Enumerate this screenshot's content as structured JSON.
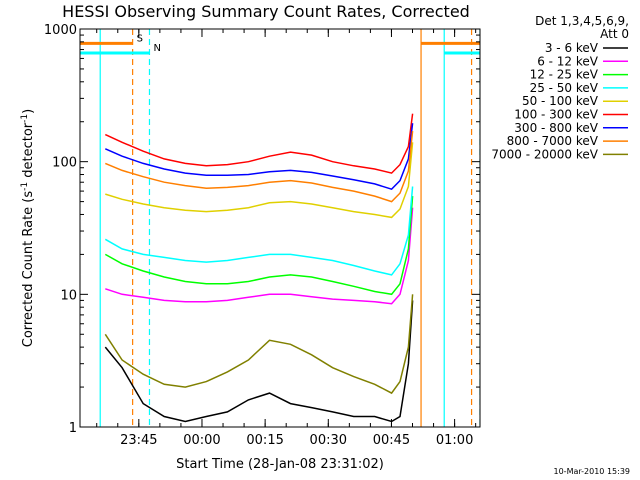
{
  "chart_data": {
    "type": "line",
    "title": "HESSI Observing Summary Count Rates, Corrected",
    "xlabel": "Start Time (28-Jan-08 23:31:02)",
    "ylabel": "Corrected Count Rate (s",
    "ylabel_sup1": "-1",
    "ylabel_mid": " detector",
    "ylabel_sup2": "-1",
    "ylabel_end": ")",
    "y_scale": "log",
    "ylim": [
      1,
      1000
    ],
    "xlim_minutes": [
      0,
      95
    ],
    "x_ticks": [
      {
        "minute": 13.97,
        "label": "23:45"
      },
      {
        "minute": 28.97,
        "label": "00:00"
      },
      {
        "minute": 43.97,
        "label": "00:15"
      },
      {
        "minute": 58.97,
        "label": "00:30"
      },
      {
        "minute": 73.97,
        "label": "00:45"
      },
      {
        "minute": 88.97,
        "label": "01:00"
      }
    ],
    "y_ticks": [
      {
        "value": 1,
        "label": "1"
      },
      {
        "value": 10,
        "label": "10"
      },
      {
        "value": 100,
        "label": "100"
      },
      {
        "value": 1000,
        "label": "1000"
      }
    ],
    "legend_header_1": "Det 1,3,4,5,6,9,",
    "legend_header_2": "Att 0",
    "legend_position": "right",
    "x": [
      6,
      10,
      15,
      20,
      25,
      30,
      35,
      40,
      45,
      50,
      55,
      60,
      65,
      70,
      74,
      76,
      78,
      79
    ],
    "series": [
      {
        "name": "3 - 6 keV",
        "color": "#000000",
        "values": [
          4,
          2.8,
          1.5,
          1.2,
          1.1,
          1.2,
          1.3,
          1.6,
          1.8,
          1.5,
          1.4,
          1.3,
          1.2,
          1.2,
          1.1,
          1.2,
          3,
          9
        ]
      },
      {
        "name": "6 - 12 keV",
        "color": "#ff00ff",
        "values": [
          11,
          10,
          9.5,
          9,
          8.8,
          8.8,
          9,
          9.5,
          10,
          10,
          9.6,
          9.2,
          9,
          8.8,
          8.5,
          10,
          18,
          45
        ]
      },
      {
        "name": "12 - 25 keV",
        "color": "#00ff00",
        "values": [
          20,
          17,
          15,
          13.5,
          12.5,
          12,
          12,
          12.5,
          13.5,
          14,
          13.5,
          12.5,
          11.5,
          10.5,
          10,
          12,
          22,
          55
        ]
      },
      {
        "name": "25 - 50 keV",
        "color": "#00ffff",
        "values": [
          26,
          22,
          20,
          19,
          18,
          17.5,
          18,
          19,
          20,
          20,
          19,
          18,
          16.5,
          15,
          14,
          17,
          28,
          65
        ]
      },
      {
        "name": "50 - 100 keV",
        "color": "#e0d000",
        "values": [
          57,
          52,
          48,
          45,
          43,
          42,
          43,
          45,
          49,
          50,
          48,
          45,
          42,
          40,
          38,
          44,
          65,
          140
        ]
      },
      {
        "name": "100 - 300 keV",
        "color": "#ff0000",
        "values": [
          160,
          140,
          120,
          105,
          97,
          93,
          95,
          100,
          110,
          118,
          112,
          100,
          93,
          88,
          82,
          95,
          130,
          230
        ]
      },
      {
        "name": "300 - 800 keV",
        "color": "#0000ff",
        "values": [
          125,
          110,
          97,
          88,
          82,
          79,
          79,
          80,
          84,
          86,
          83,
          78,
          73,
          68,
          62,
          72,
          105,
          195
        ]
      },
      {
        "name": "800 - 7000 keV",
        "color": "#ff7f00",
        "values": [
          97,
          86,
          77,
          70,
          66,
          63,
          64,
          66,
          70,
          72,
          69,
          64,
          60,
          55,
          50,
          58,
          85,
          170
        ]
      },
      {
        "name": "7000 - 20000 keV",
        "color": "#808000",
        "values": [
          5,
          3.2,
          2.5,
          2.1,
          2.0,
          2.2,
          2.6,
          3.2,
          4.5,
          4.2,
          3.5,
          2.8,
          2.4,
          2.1,
          1.8,
          2.2,
          4,
          10
        ]
      }
    ],
    "vlines": [
      {
        "minute": 4.8,
        "color": "#00ffff",
        "dash": false
      },
      {
        "minute": 12.5,
        "color": "#ff7f00",
        "dash": true
      },
      {
        "minute": 16.5,
        "color": "#00ffff",
        "dash": true
      },
      {
        "minute": 81,
        "color": "#ff7f00",
        "dash": false
      },
      {
        "minute": 86.5,
        "color": "#00ffff",
        "dash": false
      },
      {
        "minute": 93,
        "color": "#ff7f00",
        "dash": true
      },
      {
        "minute": 95,
        "color": "#00ffff",
        "dash": true
      }
    ],
    "flag_bars": [
      {
        "from": 0,
        "to": 12.5,
        "color": "#ff7f00",
        "value": 780,
        "label": "S"
      },
      {
        "from": 0,
        "to": 16.5,
        "color": "#00ffff",
        "value": 660,
        "label": "N"
      },
      {
        "from": 81,
        "to": 95,
        "color": "#ff7f00",
        "value": 780,
        "label": ""
      },
      {
        "from": 86.5,
        "to": 95,
        "color": "#00ffff",
        "value": 660,
        "label": ""
      }
    ]
  },
  "timestamp": "10-Mar-2010 15:39"
}
